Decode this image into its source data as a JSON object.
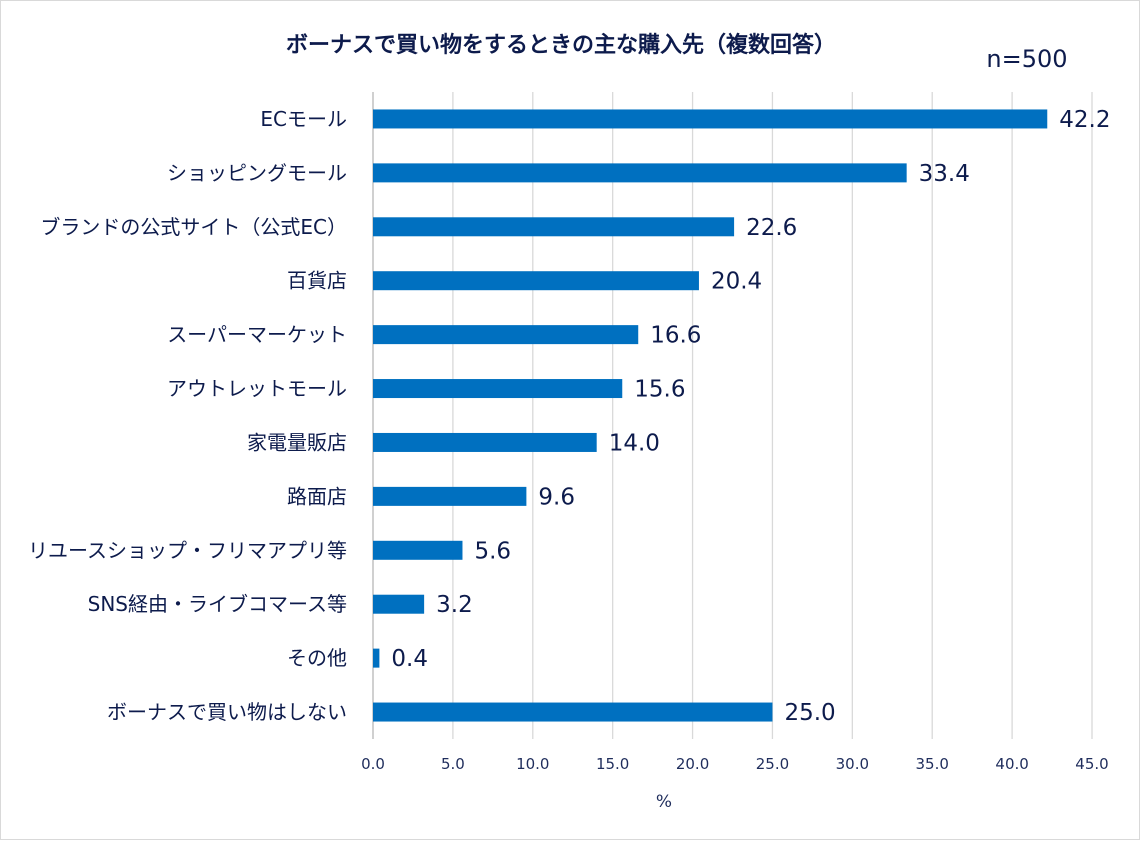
{
  "chart_data": {
    "type": "bar",
    "orientation": "horizontal",
    "title": "ボーナスで買い物をするときの主な購入先（複数回答）",
    "sample_note": "n=500",
    "xlabel": "%",
    "xlim": [
      0,
      45
    ],
    "xticks": [
      "0.0",
      "5.0",
      "10.0",
      "15.0",
      "20.0",
      "25.0",
      "30.0",
      "35.0",
      "40.0",
      "45.0"
    ],
    "grid": true,
    "bar_color": "#0070c0",
    "categories": [
      "ECモール",
      "ショッピングモール",
      "ブランドの公式サイト（公式EC）",
      "百貨店",
      "スーパーマーケット",
      "アウトレットモール",
      "家電量販店",
      "路面店",
      "リユースショップ・フリマアプリ等",
      "SNS経由・ライブコマース等",
      "その他",
      "ボーナスで買い物はしない"
    ],
    "values": [
      42.2,
      33.4,
      22.6,
      20.4,
      16.6,
      15.6,
      14.0,
      9.6,
      5.6,
      3.2,
      0.4,
      25.0
    ],
    "value_labels": [
      "42.2",
      "33.4",
      "22.6",
      "20.4",
      "16.6",
      "15.6",
      "14.0",
      "9.6",
      "5.6",
      "3.2",
      "0.4",
      "25.0"
    ]
  }
}
